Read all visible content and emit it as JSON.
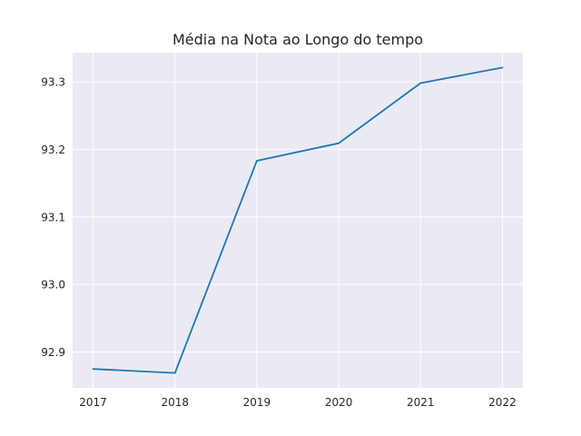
{
  "chart_data": {
    "type": "line",
    "title": "Média na Nota ao Longo do tempo",
    "xlabel": "",
    "ylabel": "",
    "x": [
      2017,
      2018,
      2019,
      2020,
      2021,
      2022
    ],
    "series": [
      {
        "values": [
          92.875,
          92.869,
          93.183,
          93.209,
          93.298,
          93.321
        ],
        "color": "#1f77b4"
      }
    ],
    "x_ticks": [
      "2017",
      "2018",
      "2019",
      "2020",
      "2021",
      "2022"
    ],
    "y_ticks": [
      92.9,
      93.0,
      93.1,
      93.2,
      93.3
    ],
    "y_tick_labels": [
      "92.9",
      "93.0",
      "93.1",
      "93.2",
      "93.3"
    ],
    "xlim": [
      2016.75,
      2022.25
    ],
    "ylim": [
      92.847,
      93.343
    ],
    "grid": true,
    "legend": "none",
    "colors": {
      "plot_background": "#eaeaf2",
      "grid": "#ffffff",
      "text": "#262626"
    }
  }
}
